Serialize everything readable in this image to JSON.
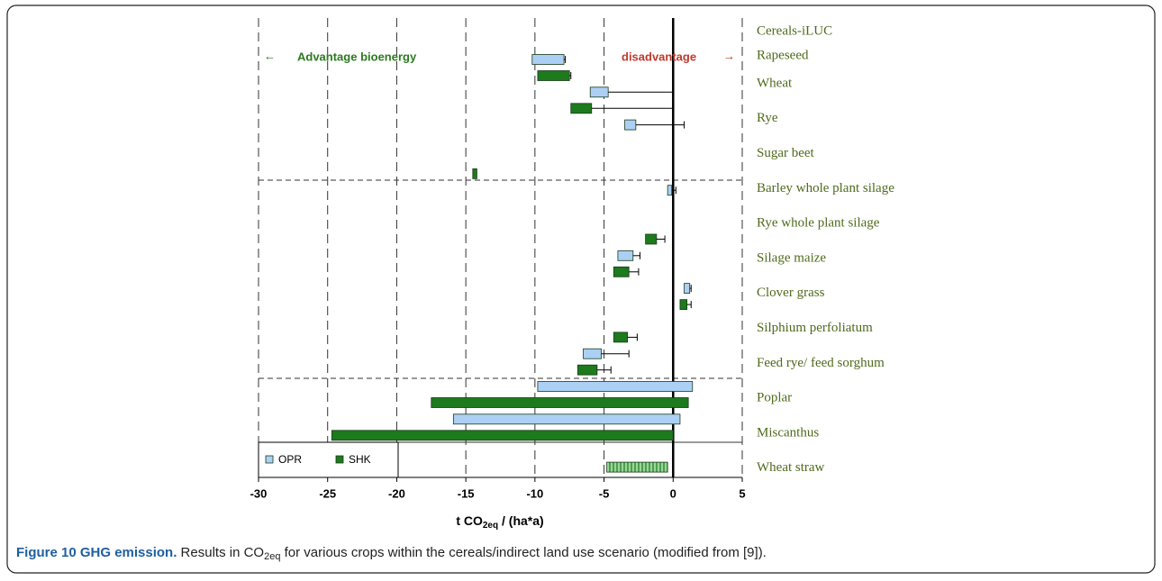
{
  "chart_data": {
    "type": "floating-bar",
    "heading": "Cereals-iLUC",
    "annotations": {
      "left_arrow": "←",
      "left": "Advantage bioenergy",
      "right": "disadvantage",
      "right_arrow": "→"
    },
    "categories": [
      "Rapeseed",
      "Wheat",
      "Rye",
      "Sugar beet",
      "Barley whole plant silage",
      "Rye whole plant silage",
      "Silage maize",
      "Clover grass",
      "Silphium perfoliatum",
      "Feed rye/ feed sorghum",
      "Poplar",
      "Miscanthus",
      "Wheat straw"
    ],
    "series": [
      {
        "name": "OPR",
        "color": "#acd0f4",
        "low": [
          -10.2,
          -6.0,
          -3.5,
          null,
          -0.4,
          null,
          -4.0,
          0.8,
          null,
          -6.5,
          -9.8,
          -15.9,
          null
        ],
        "high": [
          -7.9,
          -4.7,
          -2.7,
          null,
          -0.1,
          null,
          -2.9,
          1.2,
          null,
          -5.2,
          1.4,
          0.5,
          null
        ],
        "error_high": [
          -7.8,
          0,
          0.8,
          null,
          0.2,
          null,
          -2.4,
          1.3,
          null,
          -3.2,
          null,
          null,
          null
        ]
      },
      {
        "name": "SHK",
        "color": "#1d7a1d",
        "low": [
          -9.8,
          -7.4,
          null,
          -14.5,
          null,
          -2.0,
          -4.3,
          0.5,
          -4.3,
          -6.9,
          -17.5,
          -24.7,
          null
        ],
        "high": [
          -7.5,
          -5.9,
          null,
          -14.2,
          null,
          -1.2,
          -3.2,
          1.0,
          -3.3,
          -5.5,
          1.1,
          0,
          null
        ],
        "error_high": [
          -7.4,
          0,
          null,
          null,
          null,
          -0.6,
          -2.5,
          1.3,
          -2.6,
          -4.5,
          null,
          null,
          null
        ]
      },
      {
        "color": "#9ad69a",
        "pattern": "hatched",
        "low": [
          null,
          null,
          null,
          null,
          null,
          null,
          null,
          null,
          null,
          null,
          null,
          null,
          -4.8
        ],
        "high": [
          null,
          null,
          null,
          null,
          null,
          null,
          null,
          null,
          null,
          null,
          null,
          null,
          -0.4
        ]
      }
    ],
    "xlim": [
      -30,
      5
    ],
    "xticks": [
      -30,
      -25,
      -20,
      -15,
      -10,
      -5,
      0,
      5
    ],
    "xlabel": {
      "before": "t CO",
      "sub": "2eq",
      "after": " / (ha*a)"
    },
    "grid": true,
    "legend": "lower left"
  },
  "caption": {
    "label": "Figure 10 GHG emission.",
    "before": " Results in CO",
    "sub": "2eq",
    "after": " for various crops within the cereals/indirect land use scenario (modified from [9])."
  }
}
